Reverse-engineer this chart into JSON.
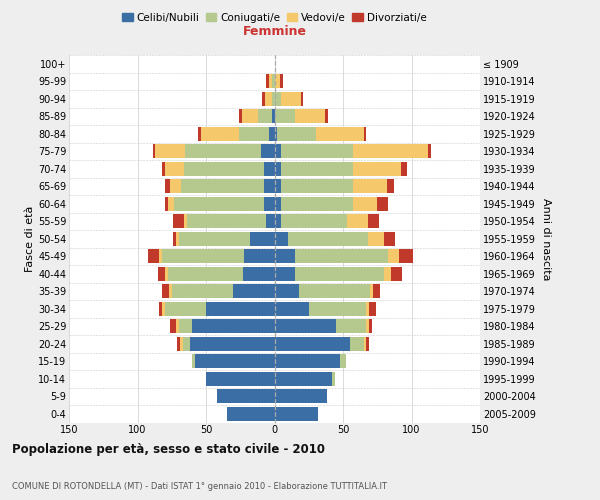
{
  "age_groups": [
    "0-4",
    "5-9",
    "10-14",
    "15-19",
    "20-24",
    "25-29",
    "30-34",
    "35-39",
    "40-44",
    "45-49",
    "50-54",
    "55-59",
    "60-64",
    "65-69",
    "70-74",
    "75-79",
    "80-84",
    "85-89",
    "90-94",
    "95-99",
    "100+"
  ],
  "birth_years": [
    "2005-2009",
    "2000-2004",
    "1995-1999",
    "1990-1994",
    "1985-1989",
    "1980-1984",
    "1975-1979",
    "1970-1974",
    "1965-1969",
    "1960-1964",
    "1955-1959",
    "1950-1954",
    "1945-1949",
    "1940-1944",
    "1935-1939",
    "1930-1934",
    "1925-1929",
    "1920-1924",
    "1915-1919",
    "1910-1914",
    "≤ 1909"
  ],
  "male": {
    "celibi": [
      35,
      42,
      50,
      58,
      62,
      60,
      50,
      30,
      23,
      22,
      18,
      6,
      8,
      8,
      8,
      10,
      4,
      2,
      0,
      0,
      0
    ],
    "coniugati": [
      0,
      0,
      0,
      2,
      5,
      10,
      30,
      45,
      55,
      60,
      52,
      58,
      65,
      60,
      58,
      55,
      22,
      10,
      2,
      2,
      0
    ],
    "vedovi": [
      0,
      0,
      0,
      0,
      2,
      2,
      2,
      2,
      2,
      2,
      2,
      2,
      5,
      8,
      14,
      22,
      28,
      12,
      5,
      2,
      0
    ],
    "divorziati": [
      0,
      0,
      0,
      0,
      2,
      4,
      2,
      5,
      5,
      8,
      2,
      8,
      2,
      4,
      2,
      2,
      2,
      2,
      2,
      2,
      0
    ]
  },
  "female": {
    "nubili": [
      32,
      38,
      42,
      48,
      55,
      45,
      25,
      18,
      15,
      15,
      10,
      5,
      5,
      5,
      5,
      5,
      2,
      0,
      0,
      0,
      0
    ],
    "coniugate": [
      0,
      0,
      2,
      4,
      10,
      22,
      42,
      52,
      65,
      68,
      58,
      48,
      52,
      52,
      52,
      52,
      28,
      15,
      5,
      0,
      0
    ],
    "vedove": [
      0,
      0,
      0,
      0,
      2,
      2,
      2,
      2,
      5,
      8,
      12,
      15,
      18,
      25,
      35,
      55,
      35,
      22,
      14,
      4,
      0
    ],
    "divorziate": [
      0,
      0,
      0,
      0,
      2,
      2,
      5,
      5,
      8,
      10,
      8,
      8,
      8,
      5,
      5,
      2,
      2,
      2,
      2,
      2,
      0
    ]
  },
  "colors": {
    "celibi": "#3a6ea5",
    "coniugati": "#b5c98e",
    "vedovi": "#f5c96b",
    "divorziati": "#c0392b"
  },
  "xlim": 150,
  "maschi_color": "#444444",
  "femmine_color": "#cc3333",
  "title": "Popolazione per età, sesso e stato civile - 2010",
  "subtitle": "COMUNE DI ROTONDELLA (MT) - Dati ISTAT 1° gennaio 2010 - Elaborazione TUTTITALIA.IT",
  "ylabel_left": "Fasce di età",
  "ylabel_right": "Anni di nascita",
  "legend_labels": [
    "Celibi/Nubili",
    "Coniugati/e",
    "Vedovi/e",
    "Divorziati/e"
  ],
  "bg_color": "#eeeeee",
  "plot_bg_color": "#ffffff"
}
